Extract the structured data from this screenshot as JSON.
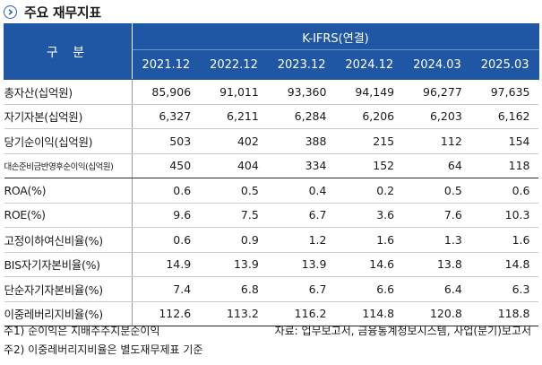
{
  "title": "주요 재무지표",
  "header": {
    "gubun": "구 분",
    "group": "K-IFRS(연결)",
    "years": [
      "2021.12",
      "2022.12",
      "2023.12",
      "2024.12",
      "2024.03",
      "2025.03"
    ]
  },
  "rows": [
    {
      "label": "총자산(십억원)",
      "values": [
        "85,906",
        "91,011",
        "93,360",
        "94,149",
        "96,277",
        "97,635"
      ]
    },
    {
      "label": "자기자본(십억원)",
      "values": [
        "6,327",
        "6,211",
        "6,284",
        "6,206",
        "6,203",
        "6,162"
      ]
    },
    {
      "label": "당기순이익(십억원)",
      "values": [
        "503",
        "402",
        "388",
        "215",
        "112",
        "154"
      ]
    },
    {
      "label": "대손준비금반영후순이익(십억원)",
      "values": [
        "450",
        "404",
        "334",
        "152",
        "64",
        "118"
      ]
    },
    {
      "label": "ROA(%)",
      "values": [
        "0.6",
        "0.5",
        "0.4",
        "0.2",
        "0.5",
        "0.6"
      ]
    },
    {
      "label": "ROE(%)",
      "values": [
        "9.6",
        "7.5",
        "6.7",
        "3.6",
        "7.6",
        "10.3"
      ]
    },
    {
      "label": "고정이하여신비율(%)",
      "values": [
        "0.6",
        "0.9",
        "1.2",
        "1.6",
        "1.3",
        "1.6"
      ]
    },
    {
      "label": "BIS자기자본비율(%)",
      "values": [
        "14.9",
        "13.9",
        "13.9",
        "14.6",
        "13.8",
        "14.8"
      ]
    },
    {
      "label": "단순자기자본비율(%)",
      "values": [
        "7.4",
        "6.8",
        "6.7",
        "6.6",
        "6.4",
        "6.3"
      ]
    },
    {
      "label": "이중레버리지비율(%)",
      "values": [
        "112.6",
        "113.2",
        "116.2",
        "114.8",
        "120.8",
        "118.8"
      ]
    }
  ],
  "notes": {
    "note1": "주1) 순이익은 지배주주지분순이익",
    "note2": "주2) 이중레버리지비율은 별도재무제표 기준",
    "source": "자료: 업무보고서, 금융통계정보시스템, 사업(분기)보고서"
  }
}
